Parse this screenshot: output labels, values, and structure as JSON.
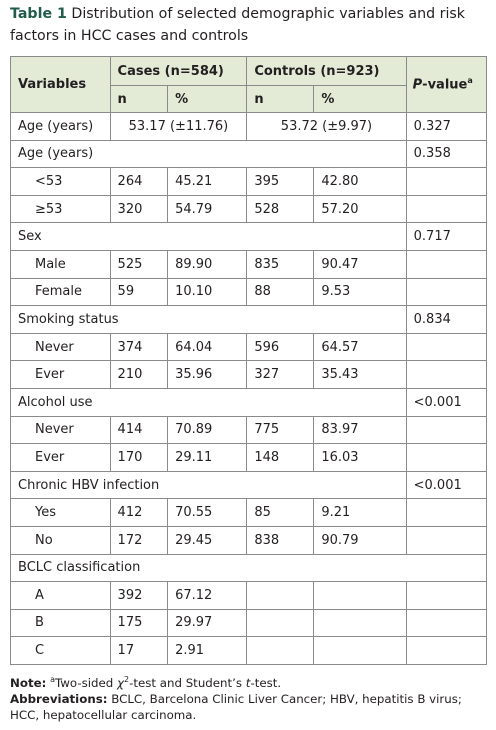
{
  "title": {
    "label": "Table 1",
    "text": "Distribution of selected demographic variables and risk factors in HCC cases and controls"
  },
  "table": {
    "header": {
      "variables": "Variables",
      "cases": "Cases (n=584)",
      "controls": "Controls (n=923)",
      "p_value": [
        "P",
        "-value"
      ],
      "p_value_mark": "a",
      "subheaders": [
        "n",
        "%",
        "n",
        "%"
      ]
    },
    "rows": [
      {
        "label": "Age (years)",
        "cases": "53.17 (±11.76)",
        "controls": "53.72 (±9.97)",
        "p": "0.327"
      },
      {
        "label": "Age (years)",
        "p": "0.358"
      },
      {
        "label": "<53",
        "values": [
          "264",
          "45.21",
          "395",
          "42.80"
        ]
      },
      {
        "label": "≥53",
        "values": [
          "320",
          "54.79",
          "528",
          "57.20"
        ]
      },
      {
        "label": "Sex",
        "p": "0.717"
      },
      {
        "label": "Male",
        "values": [
          "525",
          "89.90",
          "835",
          "90.47"
        ]
      },
      {
        "label": "Female",
        "values": [
          "59",
          "10.10",
          "88",
          "9.53"
        ]
      },
      {
        "label": "Smoking status",
        "p": "0.834"
      },
      {
        "label": "Never",
        "values": [
          "374",
          "64.04",
          "596",
          "64.57"
        ]
      },
      {
        "label": "Ever",
        "values": [
          "210",
          "35.96",
          "327",
          "35.43"
        ]
      },
      {
        "label": "Alcohol use",
        "p": "<0.001"
      },
      {
        "label": "Never",
        "values": [
          "414",
          "70.89",
          "775",
          "83.97"
        ]
      },
      {
        "label": "Ever",
        "values": [
          "170",
          "29.11",
          "148",
          "16.03"
        ]
      },
      {
        "label": "Chronic HBV infection",
        "p": "<0.001"
      },
      {
        "label": "Yes",
        "values": [
          "412",
          "70.55",
          "85",
          "9.21"
        ]
      },
      {
        "label": "No",
        "values": [
          "172",
          "29.45",
          "838",
          "90.79"
        ]
      },
      {
        "label": "BCLC classification"
      },
      {
        "label": "A",
        "values": [
          "392",
          "67.12"
        ]
      },
      {
        "label": "B",
        "values": [
          "175",
          "29.97"
        ]
      },
      {
        "label": "C",
        "values": [
          "17",
          "2.91"
        ]
      }
    ]
  },
  "note": {
    "label": "Note:",
    "mark": "a",
    "parts": [
      "Two-sided ",
      "χ",
      "2",
      "-test and Student’s ",
      "t",
      "-test."
    ]
  },
  "abbreviations": {
    "label": "Abbreviations:",
    "text": "BCLC, Barcelona Clinic Liver Cancer; HBV, hepatitis B virus; HCC, hepatocellular carcinoma."
  }
}
